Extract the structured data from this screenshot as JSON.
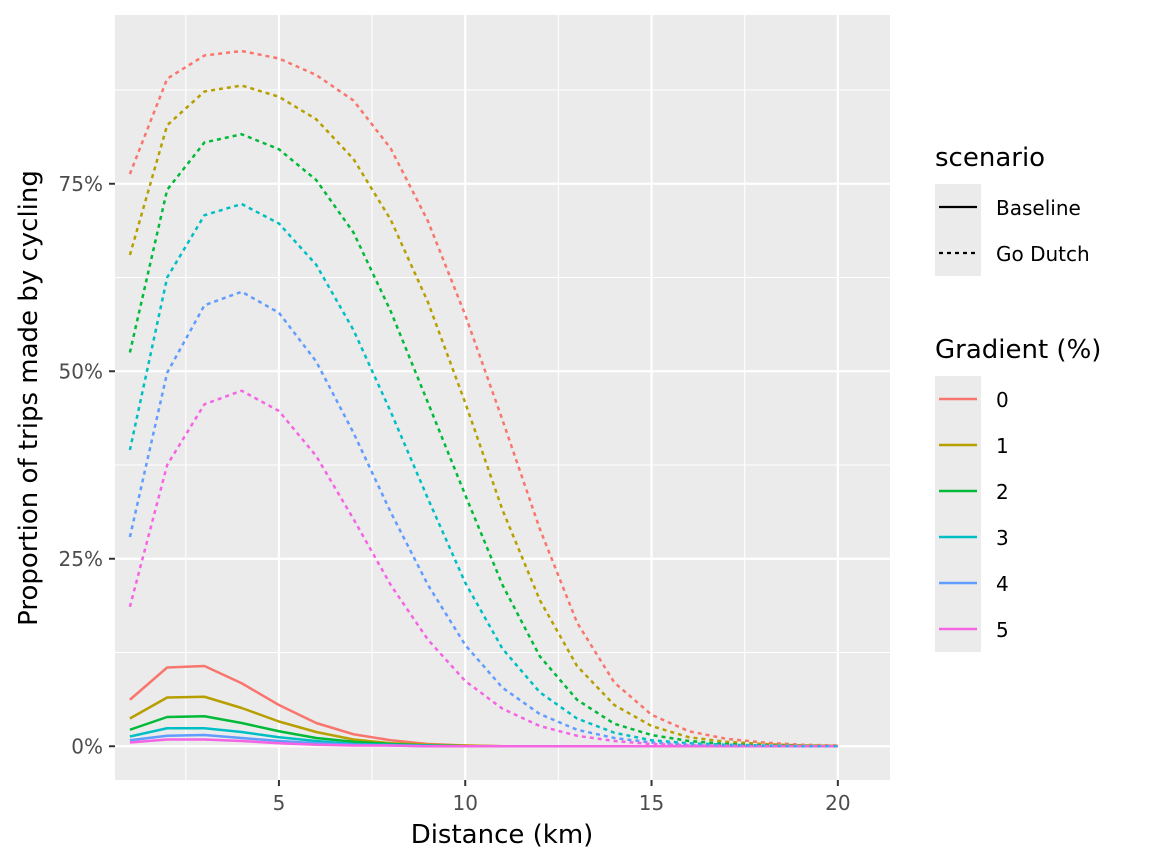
{
  "chart_data": {
    "type": "line",
    "xlabel": "Distance (km)",
    "ylabel": "Proportion of trips made by cycling",
    "xlim": [
      0.6,
      21.4
    ],
    "ylim": [
      -0.045,
      0.975
    ],
    "x_ticks": [
      5,
      10,
      15,
      20
    ],
    "x_tick_labels": [
      "5",
      "10",
      "15",
      "20"
    ],
    "y_ticks": [
      0,
      0.25,
      0.5,
      0.75
    ],
    "y_tick_labels": [
      "0%",
      "25%",
      "50%",
      "75%"
    ],
    "grid": true,
    "legend_position": "right",
    "x": [
      1,
      2,
      3,
      4,
      5,
      6,
      7,
      8,
      9,
      10,
      11,
      12,
      13,
      14,
      15,
      16,
      17,
      18,
      19,
      20
    ],
    "colors": {
      "0": "#F8766D",
      "1": "#B79F00",
      "2": "#00BA38",
      "3": "#00BFC4",
      "4": "#619CFF",
      "5": "#F564E3"
    },
    "legends": {
      "scenario": {
        "title": "scenario",
        "entries": [
          {
            "label": "Baseline",
            "linetype": "solid"
          },
          {
            "label": "Go Dutch",
            "linetype": "dashed"
          }
        ]
      },
      "gradient": {
        "title": "Gradient (%)",
        "entries": [
          "0",
          "1",
          "2",
          "3",
          "4",
          "5"
        ]
      }
    },
    "series": [
      {
        "scenario": "Baseline",
        "gradient": "0",
        "values": [
          0.062,
          0.105,
          0.107,
          0.084,
          0.055,
          0.031,
          0.016,
          0.008,
          0.003,
          0.001,
          0,
          0,
          0,
          0,
          0,
          0,
          0,
          0,
          0,
          0
        ]
      },
      {
        "scenario": "Baseline",
        "gradient": "1",
        "values": [
          0.037,
          0.065,
          0.066,
          0.051,
          0.033,
          0.019,
          0.009,
          0.004,
          0.002,
          0.001,
          0,
          0,
          0,
          0,
          0,
          0,
          0,
          0,
          0,
          0
        ]
      },
      {
        "scenario": "Baseline",
        "gradient": "2",
        "values": [
          0.022,
          0.039,
          0.04,
          0.031,
          0.02,
          0.011,
          0.006,
          0.003,
          0.001,
          0,
          0,
          0,
          0,
          0,
          0,
          0,
          0,
          0,
          0,
          0
        ]
      },
      {
        "scenario": "Baseline",
        "gradient": "3",
        "values": [
          0.013,
          0.024,
          0.024,
          0.019,
          0.012,
          0.007,
          0.003,
          0.002,
          0.001,
          0,
          0,
          0,
          0,
          0,
          0,
          0,
          0,
          0,
          0,
          0
        ]
      },
      {
        "scenario": "Baseline",
        "gradient": "4",
        "values": [
          0.008,
          0.014,
          0.015,
          0.011,
          0.007,
          0.004,
          0.002,
          0.001,
          0,
          0,
          0,
          0,
          0,
          0,
          0,
          0,
          0,
          0,
          0,
          0
        ]
      },
      {
        "scenario": "Baseline",
        "gradient": "5",
        "values": [
          0.005,
          0.009,
          0.009,
          0.007,
          0.004,
          0.002,
          0.001,
          0.001,
          0,
          0,
          0,
          0,
          0,
          0,
          0,
          0,
          0,
          0,
          0,
          0
        ]
      },
      {
        "scenario": "Go Dutch",
        "gradient": "0",
        "values": [
          0.763,
          0.89,
          0.921,
          0.927,
          0.917,
          0.895,
          0.861,
          0.797,
          0.7,
          0.575,
          0.435,
          0.29,
          0.165,
          0.085,
          0.042,
          0.02,
          0.01,
          0.005,
          0.002,
          0.001
        ]
      },
      {
        "scenario": "Go Dutch",
        "gradient": "1",
        "values": [
          0.655,
          0.828,
          0.873,
          0.881,
          0.866,
          0.836,
          0.783,
          0.702,
          0.592,
          0.458,
          0.315,
          0.195,
          0.107,
          0.055,
          0.027,
          0.012,
          0.006,
          0.003,
          0.001,
          0.0005
        ]
      },
      {
        "scenario": "Go Dutch",
        "gradient": "2",
        "values": [
          0.525,
          0.742,
          0.805,
          0.816,
          0.796,
          0.755,
          0.685,
          0.58,
          0.458,
          0.335,
          0.215,
          0.12,
          0.062,
          0.03,
          0.015,
          0.007,
          0.003,
          0.001,
          0.0005,
          0
        ]
      },
      {
        "scenario": "Go Dutch",
        "gradient": "3",
        "values": [
          0.395,
          0.625,
          0.708,
          0.723,
          0.697,
          0.642,
          0.555,
          0.446,
          0.33,
          0.218,
          0.13,
          0.072,
          0.037,
          0.018,
          0.008,
          0.004,
          0.002,
          0.001,
          0,
          0
        ]
      },
      {
        "scenario": "Go Dutch",
        "gradient": "4",
        "values": [
          0.279,
          0.498,
          0.588,
          0.606,
          0.578,
          0.513,
          0.418,
          0.312,
          0.215,
          0.135,
          0.078,
          0.043,
          0.022,
          0.011,
          0.005,
          0.002,
          0.001,
          0.0005,
          0,
          0
        ]
      },
      {
        "scenario": "Go Dutch",
        "gradient": "5",
        "values": [
          0.186,
          0.375,
          0.456,
          0.474,
          0.447,
          0.387,
          0.303,
          0.215,
          0.142,
          0.087,
          0.05,
          0.027,
          0.014,
          0.007,
          0.003,
          0.001,
          0.0005,
          0,
          0,
          0
        ]
      }
    ]
  }
}
